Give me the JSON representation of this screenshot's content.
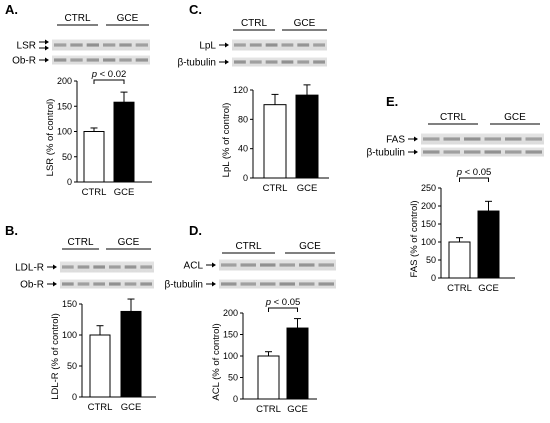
{
  "panels": [
    {
      "id": "A",
      "label": "A.",
      "groups": [
        "CTRL",
        "GCE"
      ],
      "blot_rows": [
        "LSR",
        "Ob-R"
      ],
      "lsr_double_arrow": true,
      "p_value": "p < 0.02"
    },
    {
      "id": "B",
      "label": "B.",
      "groups": [
        "CTRL",
        "GCE"
      ],
      "blot_rows": [
        "LDL-R",
        "Ob-R"
      ],
      "lsr_double_arrow": false,
      "p_value": ""
    },
    {
      "id": "C",
      "label": "C.",
      "groups": [
        "CTRL",
        "GCE"
      ],
      "blot_rows": [
        "LpL",
        "β-tubulin"
      ],
      "lsr_double_arrow": false,
      "p_value": ""
    },
    {
      "id": "D",
      "label": "D.",
      "groups": [
        "CTRL",
        "GCE"
      ],
      "blot_rows": [
        "ACL",
        "β-tubulin"
      ],
      "lsr_double_arrow": false,
      "p_value": "p < 0.05"
    },
    {
      "id": "E",
      "label": "E.",
      "groups": [
        "CTRL",
        "GCE"
      ],
      "blot_rows": [
        "FAS",
        "β-tubulin"
      ],
      "lsr_double_arrow": false,
      "p_value": "p < 0.05"
    }
  ],
  "chart_data": [
    {
      "panel": "A",
      "type": "bar",
      "categories": [
        "CTRL",
        "GCE"
      ],
      "values": [
        100,
        158
      ],
      "errors": [
        7,
        20
      ],
      "ylabel": "LSR (% of control)",
      "ylim": [
        0,
        200
      ],
      "yticks": [
        0,
        50,
        100,
        150,
        200
      ],
      "bar_colors": [
        "#ffffff",
        "#000000"
      ]
    },
    {
      "panel": "B",
      "type": "bar",
      "categories": [
        "CTRL",
        "GCE"
      ],
      "values": [
        100,
        138
      ],
      "errors": [
        15,
        20
      ],
      "ylabel": "LDL-R (% of control)",
      "ylim": [
        0,
        150
      ],
      "yticks": [
        0,
        50,
        100,
        150
      ],
      "bar_colors": [
        "#ffffff",
        "#000000"
      ]
    },
    {
      "panel": "C",
      "type": "bar",
      "categories": [
        "CTRL",
        "GCE"
      ],
      "values": [
        100,
        113
      ],
      "errors": [
        14,
        14
      ],
      "ylabel": "LpL (% of control)",
      "ylim": [
        0,
        120
      ],
      "yticks": [
        0,
        40,
        80,
        120
      ],
      "bar_colors": [
        "#ffffff",
        "#000000"
      ]
    },
    {
      "panel": "D",
      "type": "bar",
      "categories": [
        "CTRL",
        "GCE"
      ],
      "values": [
        100,
        165
      ],
      "errors": [
        10,
        22
      ],
      "ylabel": "ACL (% of control)",
      "ylim": [
        0,
        200
      ],
      "yticks": [
        0,
        50,
        100,
        150,
        200
      ],
      "bar_colors": [
        "#ffffff",
        "#000000"
      ]
    },
    {
      "panel": "E",
      "type": "bar",
      "categories": [
        "CTRL",
        "GCE"
      ],
      "values": [
        100,
        186
      ],
      "errors": [
        12,
        27
      ],
      "ylabel": "FAS (% of control)",
      "ylim": [
        0,
        250
      ],
      "yticks": [
        0,
        50,
        100,
        150,
        200,
        250
      ],
      "bar_colors": [
        "#ffffff",
        "#000000"
      ]
    }
  ]
}
